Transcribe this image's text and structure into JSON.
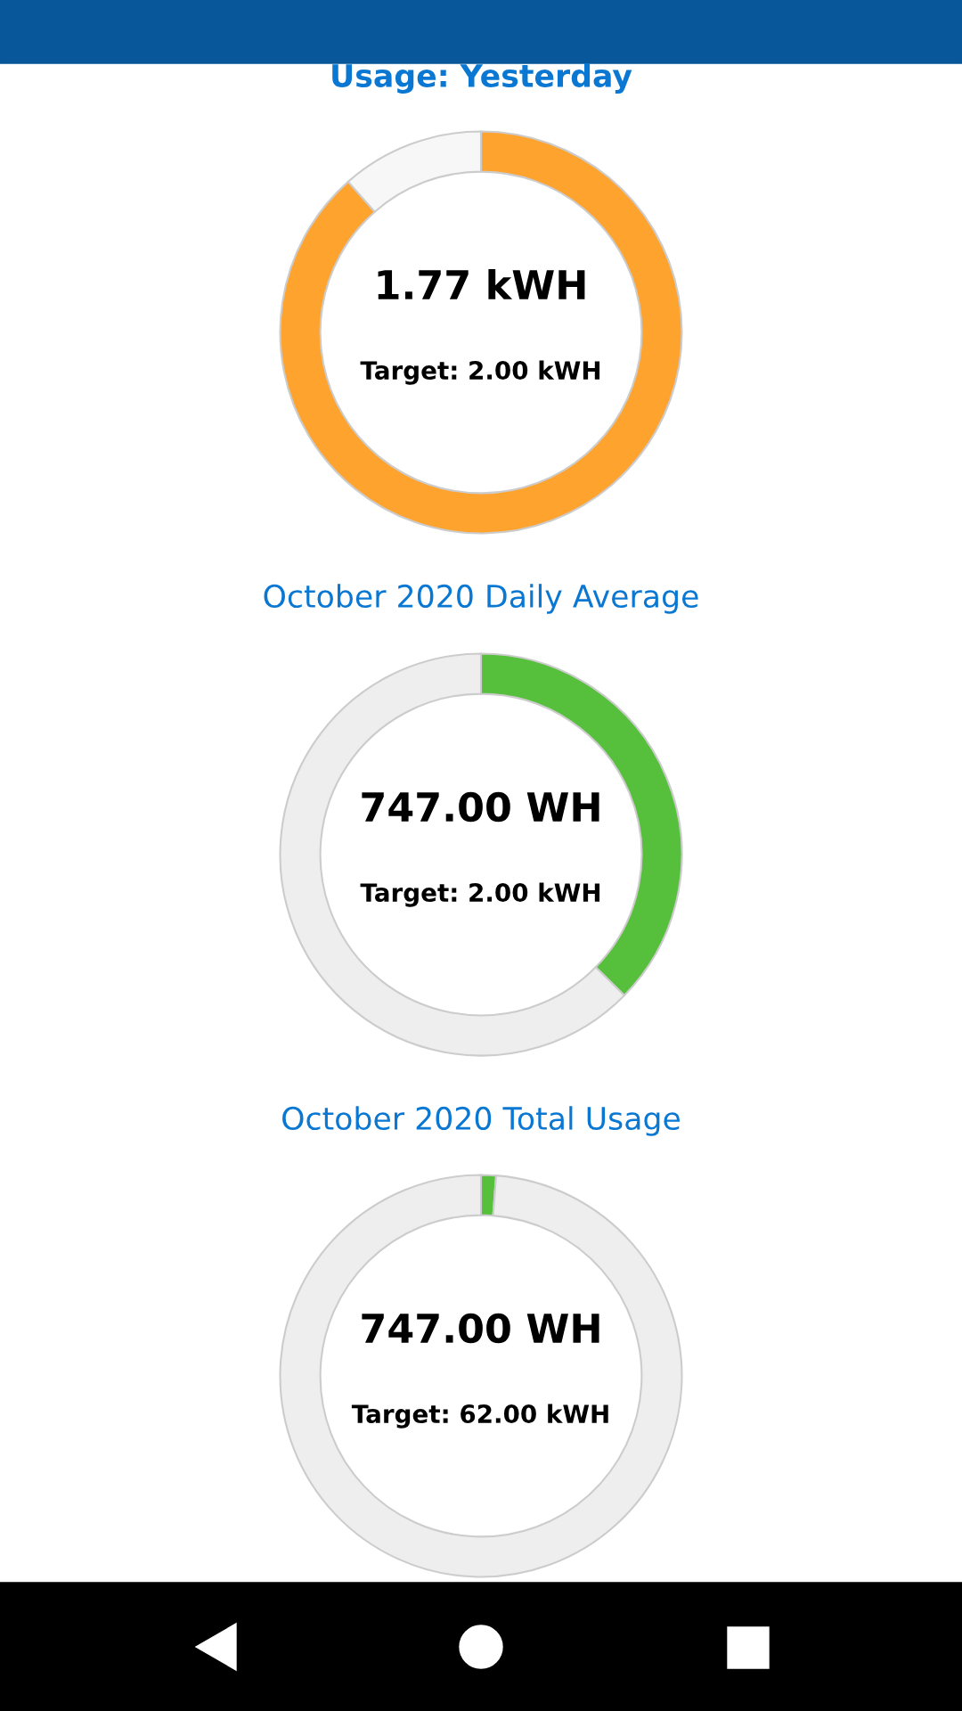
{
  "chart_data": [
    {
      "type": "donut",
      "title": "Usage: Yesterday",
      "categories": [
        null,
        null
      ],
      "values": [
        88.5,
        11.5
      ],
      "colors": [
        "#ffa32f",
        "#f7f7f7"
      ],
      "annotations": [
        "1.77 kWH",
        "Target: 2.00 kWH"
      ]
    },
    {
      "type": "donut",
      "title": "October 2020 Daily Average",
      "categories": [
        null,
        null
      ],
      "values": [
        37.35,
        62.65
      ],
      "colors": [
        "#56bf3c",
        "#eeeeee"
      ],
      "annotations": [
        "747.00 WH",
        "Target: 2.00 kWH"
      ]
    },
    {
      "type": "donut",
      "title": "October 2020 Total Usage",
      "categories": [
        null,
        null
      ],
      "values": [
        1.2,
        98.8
      ],
      "colors": [
        "#56bf3c",
        "#eeeeee"
      ],
      "annotations": [
        "747.00 WH",
        "Target: 62.00 kWH"
      ]
    }
  ]
}
